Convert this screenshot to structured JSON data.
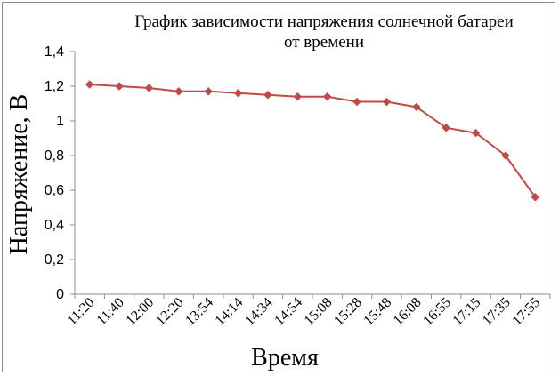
{
  "chart_data": {
    "type": "line",
    "title_lines": [
      "График зависимости напряжения солнечной батареи",
      "от времени"
    ],
    "xlabel": "Время",
    "ylabel": "Напряжение, В",
    "ylim": [
      0,
      1.4
    ],
    "y_step": 0.2,
    "y_tick_labels": [
      "0",
      "0,2",
      "0,4",
      "0,6",
      "0,8",
      "1",
      "1,2",
      "1,4"
    ],
    "grid": false,
    "legend": "none",
    "color": "#be4b48",
    "categories": [
      "11:20",
      "11:40",
      "12:00",
      "12:20",
      "13:54",
      "14:14",
      "14:34",
      "14:54",
      "15:08",
      "15:28",
      "15:48",
      "16:08",
      "16:55",
      "17:15",
      "17:35",
      "17:55"
    ],
    "values": [
      1.21,
      1.2,
      1.19,
      1.17,
      1.17,
      1.16,
      1.15,
      1.14,
      1.14,
      1.11,
      1.11,
      1.08,
      0.96,
      0.93,
      0.8,
      0.56
    ]
  }
}
